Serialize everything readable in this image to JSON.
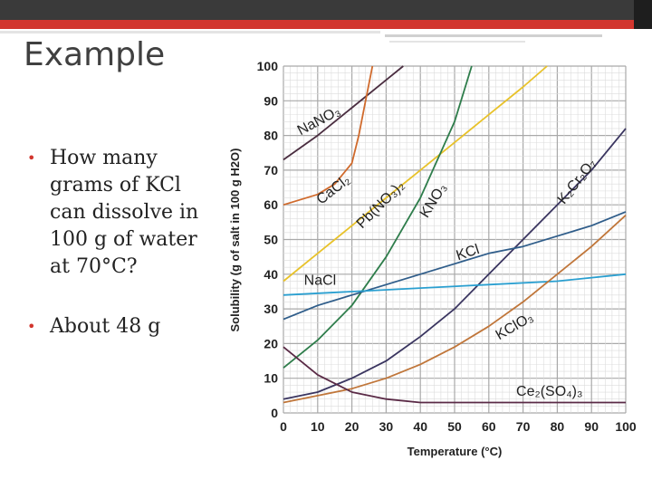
{
  "slide": {
    "title": "Example",
    "bullets": [
      "How many grams of KCl can dissolve in 100 g of water at 70°C?",
      "About 48 g"
    ]
  },
  "chart_data": {
    "type": "line",
    "title": "",
    "xlabel": "Temperature (°C)",
    "ylabel": "Solubility (g of salt in 100 g H2O)",
    "xlim": [
      0,
      100
    ],
    "ylim": [
      0,
      100
    ],
    "xticks": [
      0,
      10,
      20,
      30,
      40,
      50,
      60,
      70,
      80,
      90,
      100
    ],
    "yticks": [
      0,
      10,
      20,
      30,
      40,
      50,
      60,
      70,
      80,
      90,
      100
    ],
    "grid": true,
    "series": [
      {
        "name": "NaNO3",
        "color": "#4a2d40",
        "points": [
          [
            0,
            73
          ],
          [
            10,
            80
          ],
          [
            20,
            88
          ],
          [
            30,
            96
          ],
          [
            35,
            100
          ]
        ]
      },
      {
        "name": "CaCl2",
        "color": "#d06a2c",
        "points": [
          [
            0,
            60
          ],
          [
            10,
            63
          ],
          [
            15,
            66
          ],
          [
            20,
            72
          ],
          [
            22,
            80
          ],
          [
            24,
            90
          ],
          [
            26,
            100
          ]
        ]
      },
      {
        "name": "Pb(NO3)2",
        "color": "#e8c22a",
        "points": [
          [
            0,
            38
          ],
          [
            10,
            46
          ],
          [
            20,
            54
          ],
          [
            30,
            62
          ],
          [
            40,
            70
          ],
          [
            50,
            78
          ],
          [
            60,
            86
          ],
          [
            70,
            94
          ],
          [
            77,
            100
          ]
        ]
      },
      {
        "name": "KNO3",
        "color": "#2e7d4b",
        "points": [
          [
            0,
            13
          ],
          [
            10,
            21
          ],
          [
            20,
            31
          ],
          [
            30,
            45
          ],
          [
            40,
            62
          ],
          [
            50,
            84
          ],
          [
            55,
            100
          ]
        ]
      },
      {
        "name": "K2Cr2O7",
        "color": "#3a3560",
        "points": [
          [
            0,
            4
          ],
          [
            10,
            6
          ],
          [
            20,
            10
          ],
          [
            30,
            15
          ],
          [
            40,
            22
          ],
          [
            50,
            30
          ],
          [
            60,
            40
          ],
          [
            70,
            50
          ],
          [
            80,
            60
          ],
          [
            90,
            70
          ],
          [
            100,
            82
          ]
        ]
      },
      {
        "name": "KCl",
        "color": "#2f5d8a",
        "points": [
          [
            0,
            27
          ],
          [
            10,
            31
          ],
          [
            20,
            34
          ],
          [
            30,
            37
          ],
          [
            40,
            40
          ],
          [
            50,
            43
          ],
          [
            60,
            46
          ],
          [
            70,
            48
          ],
          [
            80,
            51
          ],
          [
            90,
            54
          ],
          [
            100,
            58
          ]
        ]
      },
      {
        "name": "NaCl",
        "color": "#2a9fd0",
        "points": [
          [
            0,
            34
          ],
          [
            20,
            35
          ],
          [
            40,
            36
          ],
          [
            60,
            37
          ],
          [
            80,
            38
          ],
          [
            100,
            40
          ]
        ]
      },
      {
        "name": "KClO3",
        "color": "#c0763a",
        "points": [
          [
            0,
            3
          ],
          [
            10,
            5
          ],
          [
            20,
            7
          ],
          [
            30,
            10
          ],
          [
            40,
            14
          ],
          [
            50,
            19
          ],
          [
            60,
            25
          ],
          [
            70,
            32
          ],
          [
            80,
            40
          ],
          [
            90,
            48
          ],
          [
            100,
            57
          ]
        ]
      },
      {
        "name": "Ce2(SO4)3",
        "color": "#5a2a46",
        "points": [
          [
            0,
            19
          ],
          [
            10,
            11
          ],
          [
            20,
            6
          ],
          [
            30,
            4
          ],
          [
            40,
            3
          ],
          [
            60,
            3
          ],
          [
            80,
            3
          ],
          [
            100,
            3
          ]
        ]
      }
    ],
    "labels": [
      {
        "text": "NaNO3",
        "display": "NaNO₃",
        "x": 5,
        "y": 80,
        "angle": -28
      },
      {
        "text": "CaCl2",
        "display": "CaCl₂",
        "x": 11,
        "y": 60,
        "angle": -38
      },
      {
        "text": "Pb(NO3)2",
        "display": "Pb(NO₃)₂",
        "x": 23,
        "y": 53,
        "angle": -45
      },
      {
        "text": "KNO3",
        "display": "KNO₃",
        "x": 42,
        "y": 56,
        "angle": -58
      },
      {
        "text": "K2Cr2O7",
        "display": "K₂Cr₂O₇",
        "x": 82,
        "y": 60,
        "angle": -52
      },
      {
        "text": "KCl",
        "display": "KCl",
        "x": 51,
        "y": 44,
        "angle": -18
      },
      {
        "text": "NaCl",
        "display": "NaCl",
        "x": 6,
        "y": 37,
        "angle": 0
      },
      {
        "text": "KClO3",
        "display": "KClO₃",
        "x": 63,
        "y": 21,
        "angle": -30
      },
      {
        "text": "Ce2(SO4)3",
        "display": "Ce₂(SO₄)₃",
        "x": 68,
        "y": 5,
        "angle": 0
      }
    ]
  }
}
